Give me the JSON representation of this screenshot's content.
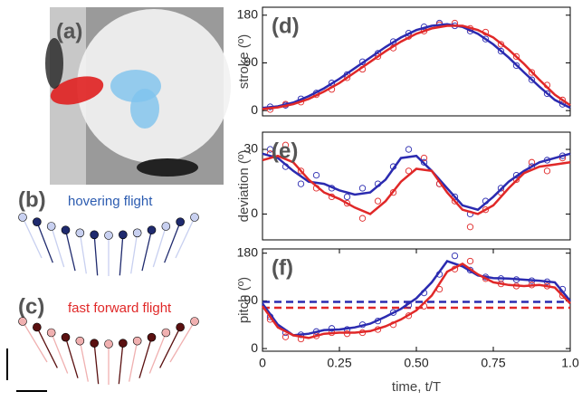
{
  "panels": {
    "a": "(a)",
    "b": "(b)",
    "b_caption": "hovering flight",
    "c": "(c)",
    "c_caption": "fast forward flight"
  },
  "chart_data": [
    {
      "type": "line",
      "label": "(d)",
      "ylabel": "stroke (º)",
      "xlim": [
        0,
        1
      ],
      "ylim": [
        -10,
        195
      ],
      "yticks": [
        0,
        90,
        180
      ],
      "x": [
        0,
        0.05,
        0.1,
        0.15,
        0.2,
        0.25,
        0.3,
        0.35,
        0.4,
        0.45,
        0.5,
        0.55,
        0.6,
        0.65,
        0.7,
        0.75,
        0.8,
        0.85,
        0.9,
        0.95,
        1
      ],
      "series": [
        {
          "color": "#2b2bb0",
          "values": [
            5,
            8,
            15,
            27,
            42,
            60,
            80,
            100,
            120,
            138,
            152,
            160,
            163,
            158,
            145,
            125,
            100,
            72,
            45,
            20,
            5
          ]
        },
        {
          "color": "#e02828",
          "values": [
            3,
            6,
            12,
            22,
            36,
            52,
            72,
            92,
            112,
            130,
            145,
            155,
            160,
            160,
            152,
            138,
            115,
            88,
            58,
            30,
            10
          ]
        }
      ],
      "points": {
        "x": [
          0.025,
          0.075,
          0.125,
          0.175,
          0.225,
          0.275,
          0.325,
          0.375,
          0.425,
          0.475,
          0.525,
          0.575,
          0.625,
          0.675,
          0.725,
          0.775,
          0.825,
          0.875,
          0.925,
          0.975
        ],
        "series": [
          {
            "color": "#2b2bb0",
            "values": [
              7,
              10,
              22,
              33,
              52,
              68,
              92,
              108,
              130,
              146,
              158,
              165,
              160,
              150,
              135,
              112,
              85,
              58,
              32,
              12
            ]
          },
          {
            "color": "#e02828",
            "values": [
              2,
              12,
              16,
              30,
              40,
              62,
              78,
              102,
              118,
              140,
              150,
              162,
              165,
              155,
              148,
              125,
              102,
              72,
              48,
              20
            ]
          }
        ]
      }
    },
    {
      "type": "line",
      "label": "(e)",
      "ylabel": "deviation (º)",
      "xlim": [
        0,
        1
      ],
      "ylim": [
        -12,
        38
      ],
      "yticks": [
        0,
        30
      ],
      "x": [
        0,
        0.05,
        0.1,
        0.15,
        0.2,
        0.25,
        0.3,
        0.35,
        0.4,
        0.45,
        0.5,
        0.55,
        0.6,
        0.65,
        0.7,
        0.75,
        0.8,
        0.85,
        0.9,
        0.95,
        1
      ],
      "series": [
        {
          "color": "#2b2bb0",
          "values": [
            28,
            26,
            20,
            15,
            14,
            11,
            9,
            10,
            16,
            26,
            27,
            20,
            12,
            4,
            2,
            8,
            15,
            20,
            24,
            26,
            28
          ]
        },
        {
          "color": "#e02828",
          "values": [
            25,
            27,
            24,
            16,
            10,
            7,
            3,
            0,
            6,
            15,
            21,
            20,
            10,
            2,
            0,
            4,
            12,
            19,
            22,
            23,
            24
          ]
        }
      ],
      "points": {
        "x": [
          0.025,
          0.075,
          0.125,
          0.175,
          0.225,
          0.275,
          0.325,
          0.375,
          0.425,
          0.475,
          0.525,
          0.575,
          0.625,
          0.675,
          0.725,
          0.775,
          0.825,
          0.875,
          0.925,
          0.975
        ],
        "series": [
          {
            "color": "#2b2bb0",
            "values": [
              30,
              22,
              14,
              18,
              12,
              8,
              12,
              14,
              22,
              30,
              24,
              14,
              8,
              0,
              6,
              12,
              18,
              22,
              25,
              27
            ]
          },
          {
            "color": "#e02828",
            "values": [
              28,
              32,
              20,
              12,
              8,
              5,
              -2,
              6,
              10,
              20,
              26,
              14,
              6,
              -6,
              2,
              10,
              16,
              24,
              20,
              26
            ]
          }
        ]
      }
    },
    {
      "type": "line",
      "label": "(f)",
      "ylabel": "pitch (º)",
      "xlabel": "time, t/T",
      "xlim": [
        0,
        1
      ],
      "ylim": [
        -5,
        188
      ],
      "yticks": [
        0,
        90,
        180
      ],
      "xticks": [
        0,
        0.25,
        {
          "value": 0.5,
          "label": "0.50"
        },
        0.75,
        {
          "value": 1,
          "label": "1.0"
        }
      ],
      "x": [
        0,
        0.05,
        0.1,
        0.15,
        0.2,
        0.25,
        0.3,
        0.35,
        0.4,
        0.45,
        0.5,
        0.55,
        0.6,
        0.65,
        0.7,
        0.75,
        0.8,
        0.85,
        0.9,
        0.95,
        1
      ],
      "series": [
        {
          "color": "#2b2bb0",
          "values": [
            85,
            45,
            25,
            28,
            35,
            36,
            40,
            47,
            60,
            75,
            95,
            125,
            165,
            155,
            138,
            133,
            132,
            130,
            128,
            125,
            90
          ]
        },
        {
          "color": "#e02828",
          "values": [
            80,
            40,
            25,
            20,
            28,
            30,
            30,
            33,
            42,
            55,
            72,
            100,
            145,
            160,
            140,
            125,
            120,
            118,
            120,
            115,
            85
          ]
        }
      ],
      "points": {
        "x": [
          0.025,
          0.075,
          0.125,
          0.175,
          0.225,
          0.275,
          0.325,
          0.375,
          0.425,
          0.475,
          0.525,
          0.575,
          0.625,
          0.675,
          0.725,
          0.775,
          0.825,
          0.875,
          0.925,
          0.975
        ],
        "series": [
          {
            "color": "#2b2bb0",
            "values": [
              60,
              30,
              26,
              32,
              38,
              36,
              45,
              52,
              68,
              82,
              105,
              140,
              175,
              148,
              135,
              132,
              130,
              128,
              126,
              112
            ]
          },
          {
            "color": "#e02828",
            "values": [
              55,
              22,
              18,
              24,
              30,
              28,
              30,
              36,
              45,
              62,
              80,
              112,
              150,
              165,
              132,
              122,
              118,
              120,
              118,
              100
            ]
          }
        ]
      },
      "hlines": [
        {
          "color": "#2b2bb0",
          "value": 88
        },
        {
          "color": "#e02828",
          "value": 77
        }
      ]
    }
  ]
}
